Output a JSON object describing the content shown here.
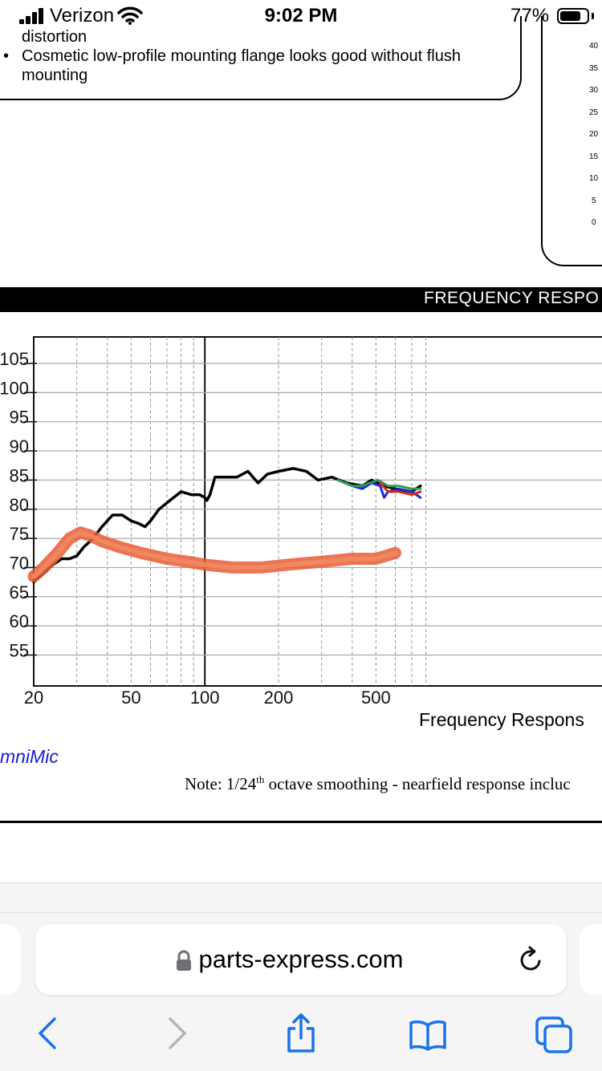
{
  "status_bar": {
    "carrier": "Verizon",
    "time": "9:02 PM",
    "battery": "77%",
    "battery_level": 0.77
  },
  "document": {
    "line_fragment": "distortion",
    "bullet_text_1": "Cosmetic low-profile mounting flange looks good without flush",
    "bullet_text_2": "mounting",
    "right_panel_ticks": [
      "40",
      "35",
      "30",
      "25",
      "20",
      "15",
      "10",
      "5",
      "0"
    ]
  },
  "chart_section": {
    "header": "FREQUENCY RESPO",
    "x_caption": "Frequency Respons",
    "software_label": "mniMic",
    "note_prefix": "Note:  1/24",
    "note_sup": "th",
    "note_suffix": " octave smoothing - nearfield response incluc"
  },
  "chart_data": {
    "type": "line",
    "xscale": "log",
    "xlim": [
      20,
      800
    ],
    "ylim": [
      50,
      110
    ],
    "grid": true,
    "x_ticks": [
      "20",
      "50",
      "100",
      "200",
      "500"
    ],
    "y_ticks": [
      "105",
      "100",
      "95",
      "90",
      "85",
      "80",
      "75",
      "70",
      "65",
      "60",
      "55"
    ],
    "series": [
      {
        "color": "#000000",
        "points": [
          [
            20,
            67.5
          ],
          [
            22,
            69
          ],
          [
            24,
            70.5
          ],
          [
            26,
            71.5
          ],
          [
            28,
            71.5
          ],
          [
            30,
            72
          ],
          [
            32,
            73.5
          ],
          [
            35,
            75
          ],
          [
            38,
            77
          ],
          [
            42,
            79
          ],
          [
            46,
            79
          ],
          [
            50,
            78
          ],
          [
            54,
            77.5
          ],
          [
            57,
            77
          ],
          [
            60,
            78
          ],
          [
            65,
            80
          ],
          [
            72,
            81.5
          ],
          [
            80,
            83
          ],
          [
            88,
            82.5
          ],
          [
            95,
            82.5
          ],
          [
            100,
            82
          ],
          [
            102,
            81.5
          ],
          [
            105,
            82.5
          ],
          [
            110,
            85.5
          ],
          [
            120,
            85.5
          ],
          [
            135,
            85.5
          ],
          [
            150,
            86.5
          ],
          [
            165,
            84.5
          ],
          [
            180,
            86
          ],
          [
            200,
            86.5
          ],
          [
            230,
            87
          ],
          [
            260,
            86.5
          ],
          [
            290,
            85
          ],
          [
            330,
            85.5
          ],
          [
            380,
            84.5
          ],
          [
            440,
            84
          ],
          [
            480,
            85
          ],
          [
            540,
            84
          ],
          [
            600,
            83.5
          ],
          [
            700,
            83
          ],
          [
            760,
            84
          ]
        ]
      },
      {
        "color": "#1a2ce0",
        "points": [
          [
            350,
            85
          ],
          [
            400,
            84
          ],
          [
            440,
            83.5
          ],
          [
            480,
            84.5
          ],
          [
            520,
            84
          ],
          [
            540,
            82
          ],
          [
            560,
            83
          ],
          [
            620,
            83.5
          ],
          [
            700,
            83
          ],
          [
            760,
            82
          ]
        ]
      },
      {
        "color": "#2e9e5a",
        "points": [
          [
            350,
            85
          ],
          [
            400,
            84
          ],
          [
            440,
            84
          ],
          [
            470,
            84.5
          ],
          [
            510,
            85
          ],
          [
            560,
            84
          ],
          [
            620,
            84
          ],
          [
            700,
            83.5
          ],
          [
            760,
            83.5
          ]
        ]
      },
      {
        "color": "#d62a1a",
        "points": [
          [
            520,
            84.5
          ],
          [
            560,
            83
          ],
          [
            620,
            83
          ],
          [
            700,
            82.5
          ],
          [
            760,
            83
          ]
        ]
      },
      {
        "color": "#e95a35",
        "points": [
          [
            20,
            68.5
          ],
          [
            22,
            70
          ],
          [
            25,
            72.5
          ],
          [
            28,
            75
          ],
          [
            31,
            76
          ],
          [
            34,
            75.5
          ],
          [
            38,
            74.5
          ],
          [
            45,
            73.5
          ],
          [
            55,
            72.5
          ],
          [
            70,
            71.5
          ],
          [
            85,
            71
          ],
          [
            100,
            70.5
          ],
          [
            130,
            70
          ],
          [
            170,
            70
          ],
          [
            220,
            70.5
          ],
          [
            300,
            71
          ],
          [
            400,
            71.5
          ],
          [
            500,
            71.5
          ],
          [
            600,
            72.5
          ]
        ]
      }
    ]
  },
  "safari": {
    "url": "parts-express.com",
    "icons": [
      "lock-icon",
      "reload-icon",
      "back-icon",
      "forward-icon",
      "share-icon",
      "bookmarks-icon",
      "tabs-icon"
    ],
    "accent": "#1a73e8"
  }
}
